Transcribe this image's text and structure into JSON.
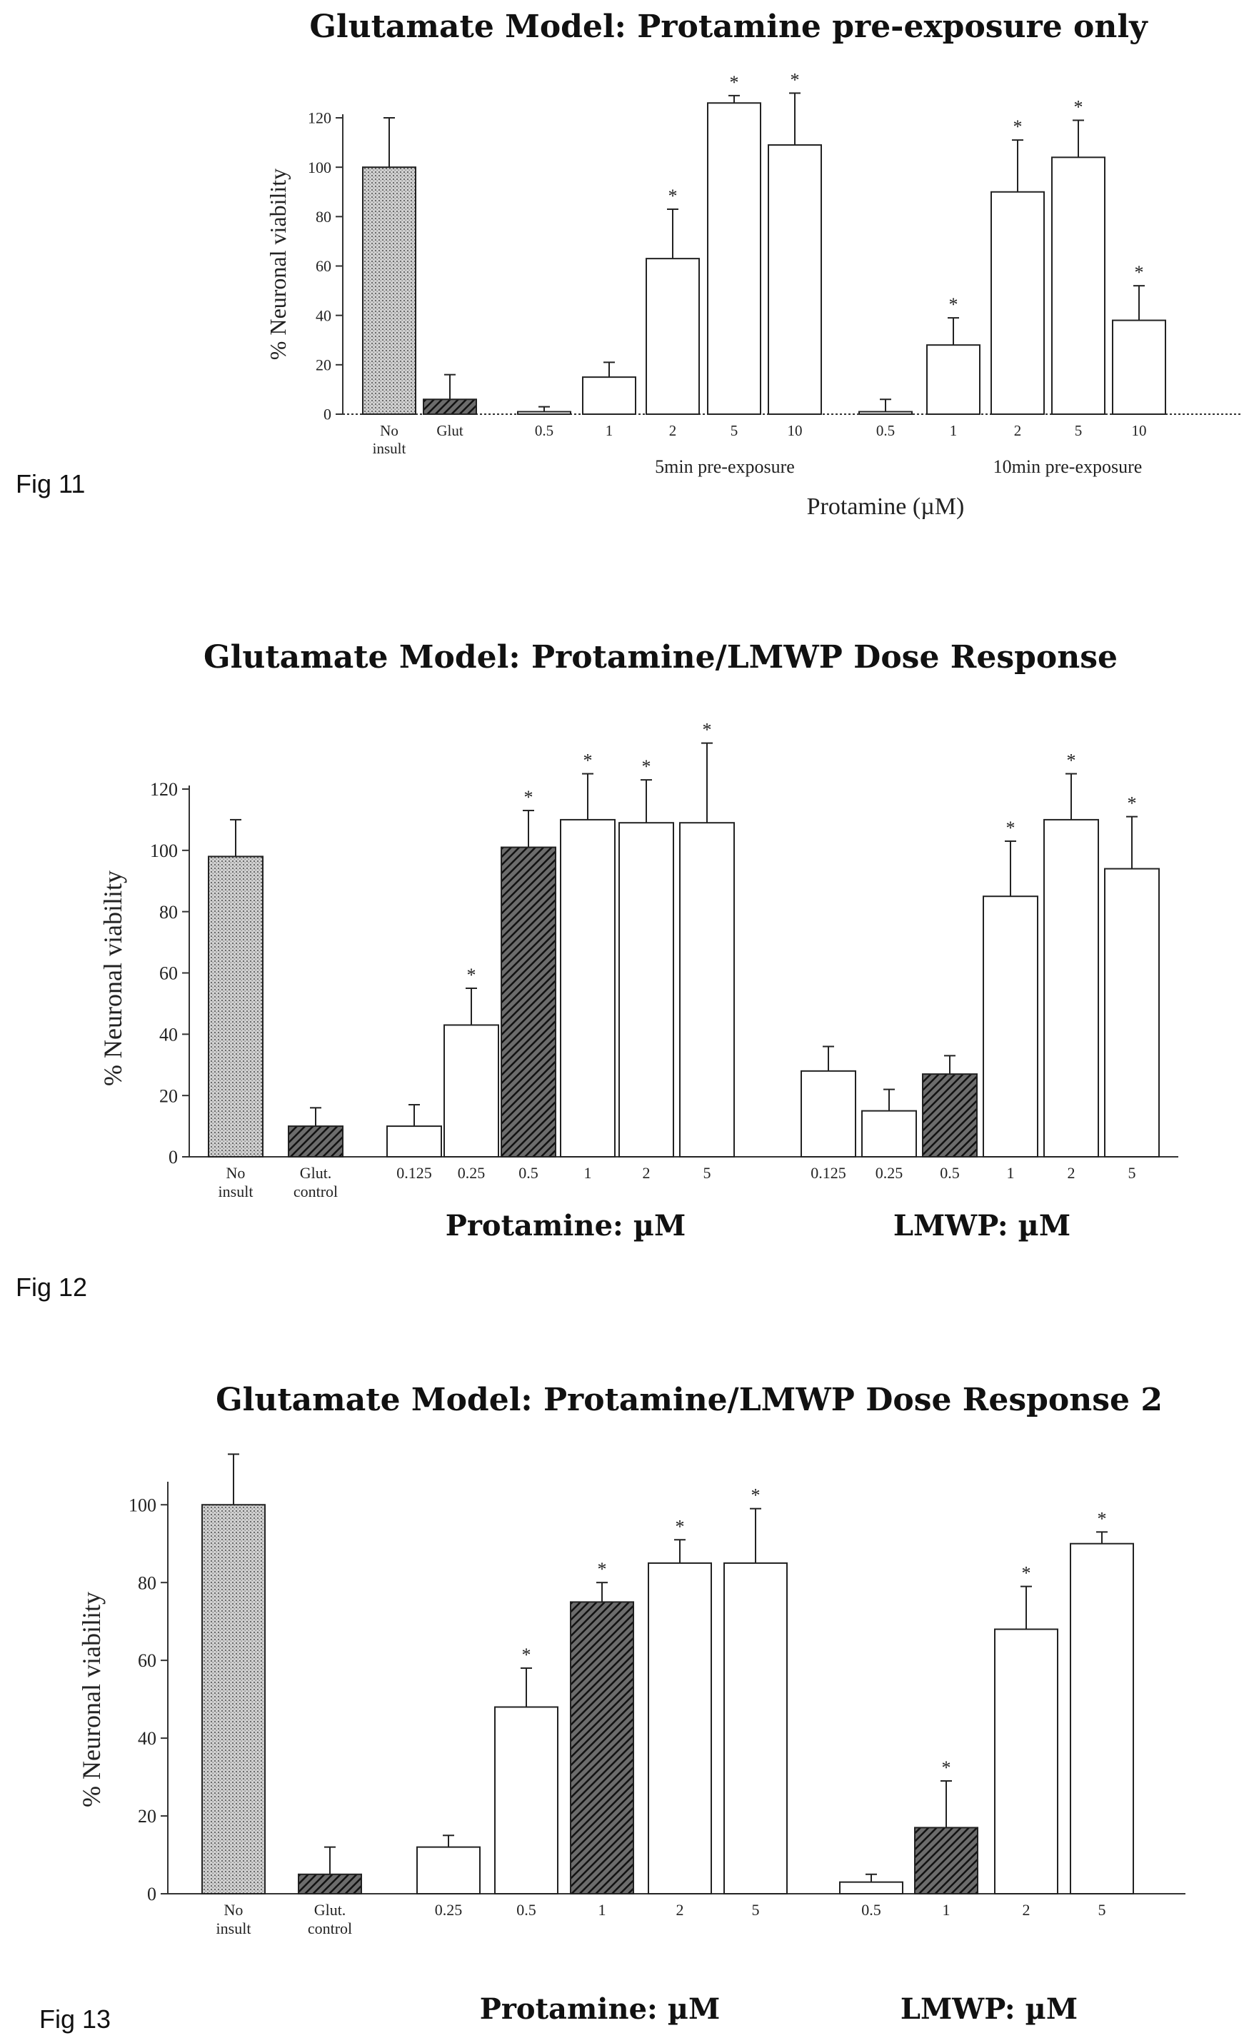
{
  "figures": [
    {
      "label": "Fig 11"
    },
    {
      "label": "Fig 12"
    },
    {
      "label": "Fig 13"
    }
  ],
  "chart_data": [
    {
      "type": "bar",
      "title": "Glutamate Model: Protamine pre-exposure only",
      "ylabel": "% Neuronal viability",
      "xlabel": "Protamine (µM)",
      "ylim": [
        0,
        120
      ],
      "yticks": [
        0,
        20,
        40,
        60,
        80,
        100,
        120
      ],
      "grid": false,
      "groups": [
        {
          "label": "5min pre-exposure",
          "style": "plain"
        },
        {
          "label": "10min pre-exposure",
          "style": "plain"
        }
      ],
      "bars": [
        {
          "label": "No insult",
          "value": 100,
          "error": 20,
          "fill": "dotted",
          "star": false
        },
        {
          "label": "Glut",
          "value": 6,
          "error": 10,
          "fill": "hatched",
          "star": false
        },
        {
          "label": "0.5",
          "value": 1,
          "error": 2,
          "fill": "white",
          "star": false
        },
        {
          "label": "1",
          "value": 15,
          "error": 6,
          "fill": "white",
          "star": false
        },
        {
          "label": "2",
          "value": 63,
          "error": 20,
          "fill": "white",
          "star": true
        },
        {
          "label": "5",
          "value": 126,
          "error": 3,
          "fill": "white",
          "star": true
        },
        {
          "label": "10",
          "value": 109,
          "error": 21,
          "fill": "white",
          "star": true
        },
        {
          "label": "0.5",
          "value": 1,
          "error": 5,
          "fill": "white",
          "star": false
        },
        {
          "label": "1",
          "value": 28,
          "error": 11,
          "fill": "white",
          "star": true
        },
        {
          "label": "2",
          "value": 90,
          "error": 21,
          "fill": "white",
          "star": true
        },
        {
          "label": "5",
          "value": 104,
          "error": 15,
          "fill": "white",
          "star": true
        },
        {
          "label": "10",
          "value": 38,
          "error": 14,
          "fill": "white",
          "star": true
        }
      ]
    },
    {
      "type": "bar",
      "title": "Glutamate Model: Protamine/LMWP Dose Response",
      "ylabel": "% Neuronal viability",
      "xlabel": "",
      "ylim": [
        0,
        120
      ],
      "yticks": [
        0,
        20,
        40,
        60,
        80,
        100,
        120
      ],
      "grid": false,
      "groups": [
        {
          "label": "Protamine: µM",
          "style": "bold"
        },
        {
          "label": "LMWP: µM",
          "style": "bold"
        }
      ],
      "bars": [
        {
          "label": "No insult",
          "value": 98,
          "error": 12,
          "fill": "dotted",
          "star": false
        },
        {
          "label": "Glut. control",
          "value": 10,
          "error": 6,
          "fill": "hatched",
          "star": false
        },
        {
          "label": "0.125",
          "value": 10,
          "error": 7,
          "fill": "white",
          "star": false
        },
        {
          "label": "0.25",
          "value": 43,
          "error": 12,
          "fill": "white",
          "star": true
        },
        {
          "label": "0.5",
          "value": 101,
          "error": 12,
          "fill": "hatched",
          "star": true
        },
        {
          "label": "1",
          "value": 110,
          "error": 15,
          "fill": "white",
          "star": true
        },
        {
          "label": "2",
          "value": 109,
          "error": 14,
          "fill": "white",
          "star": true
        },
        {
          "label": "5",
          "value": 109,
          "error": 26,
          "fill": "white",
          "star": true
        },
        {
          "label": "0.125",
          "value": 28,
          "error": 8,
          "fill": "white",
          "star": false
        },
        {
          "label": "0.25",
          "value": 15,
          "error": 7,
          "fill": "white",
          "star": false
        },
        {
          "label": "0.5",
          "value": 27,
          "error": 6,
          "fill": "hatched",
          "star": false
        },
        {
          "label": "1",
          "value": 85,
          "error": 18,
          "fill": "white",
          "star": true
        },
        {
          "label": "2",
          "value": 110,
          "error": 15,
          "fill": "white",
          "star": true
        },
        {
          "label": "5",
          "value": 94,
          "error": 17,
          "fill": "white",
          "star": true
        }
      ]
    },
    {
      "type": "bar",
      "title": "Glutamate Model: Protamine/LMWP Dose Response 2",
      "ylabel": "% Neuronal viability",
      "xlabel": "",
      "ylim": [
        0,
        105
      ],
      "yticks": [
        0,
        20,
        40,
        60,
        80,
        100
      ],
      "grid": false,
      "groups": [
        {
          "label": "Protamine: µM",
          "style": "bold"
        },
        {
          "label": "LMWP: µM",
          "style": "bold"
        }
      ],
      "bars": [
        {
          "label": "No insult",
          "value": 100,
          "error": 13,
          "fill": "dotted",
          "star": false
        },
        {
          "label": "Glut. control",
          "value": 5,
          "error": 7,
          "fill": "hatched",
          "star": false
        },
        {
          "label": "0.25",
          "value": 12,
          "error": 3,
          "fill": "white",
          "star": false
        },
        {
          "label": "0.5",
          "value": 48,
          "error": 10,
          "fill": "white",
          "star": true
        },
        {
          "label": "1",
          "value": 75,
          "error": 5,
          "fill": "hatched",
          "star": true
        },
        {
          "label": "2",
          "value": 85,
          "error": 6,
          "fill": "white",
          "star": true
        },
        {
          "label": "5",
          "value": 85,
          "error": 14,
          "fill": "white",
          "star": true
        },
        {
          "label": "0.5",
          "value": 3,
          "error": 2,
          "fill": "white",
          "star": false
        },
        {
          "label": "1",
          "value": 17,
          "error": 12,
          "fill": "hatched",
          "star": true
        },
        {
          "label": "2",
          "value": 68,
          "error": 11,
          "fill": "white",
          "star": true
        },
        {
          "label": "5",
          "value": 90,
          "error": 3,
          "fill": "white",
          "star": true
        }
      ]
    }
  ]
}
